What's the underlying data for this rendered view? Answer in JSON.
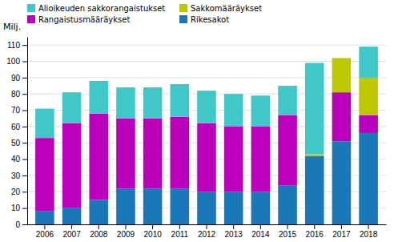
{
  "chart_data": {
    "type": "bar",
    "stacked": true,
    "ylabel": "Milj.",
    "categories": [
      "2006",
      "2007",
      "2008",
      "2009",
      "2010",
      "2011",
      "2012",
      "2013",
      "2014",
      "2015",
      "2016",
      "2017",
      "2018"
    ],
    "series": [
      {
        "name": "Rikesakot",
        "color": "#1a78b8",
        "values": [
          8,
          10,
          15,
          22,
          22,
          22,
          20,
          20,
          20,
          24,
          42,
          51,
          56
        ]
      },
      {
        "name": "Rangaistusmääräykset",
        "color": "#bb00bb",
        "values": [
          45,
          52,
          53,
          43,
          43,
          44,
          42,
          40,
          40,
          43,
          0,
          30,
          11
        ]
      },
      {
        "name": "Sakkomääräykset",
        "color": "#bec800",
        "values": [
          0,
          0,
          0,
          0,
          0,
          0,
          0,
          0,
          0,
          0,
          1,
          21,
          23
        ]
      },
      {
        "name": "Alioikeuden sakkorangaistukset",
        "color": "#40c8c8",
        "values": [
          18,
          19,
          20,
          19,
          19,
          20,
          20,
          20,
          19,
          18,
          56,
          0,
          19
        ]
      }
    ],
    "ylim": [
      0,
      115
    ],
    "yticks": [
      0,
      10,
      20,
      30,
      40,
      50,
      60,
      70,
      80,
      90,
      100,
      110
    ],
    "grid": true,
    "legend": "upper left"
  }
}
